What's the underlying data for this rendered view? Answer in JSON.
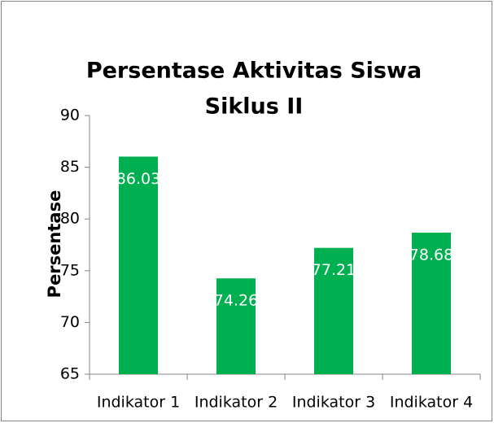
{
  "chart_data": {
    "type": "bar",
    "title": [
      "Persentase Aktivitas  Siswa",
      "Siklus II"
    ],
    "y_label": "Persentase",
    "categories": [
      "Indikator 1",
      "Indikator 2",
      "Indikator 3",
      "Indikator 4"
    ],
    "values": [
      86.03,
      74.26,
      77.21,
      78.68
    ],
    "color": "#00b050",
    "ylim": [
      65,
      90
    ],
    "yticks": [
      65,
      70,
      75,
      80,
      85,
      90
    ],
    "grid": false
  }
}
